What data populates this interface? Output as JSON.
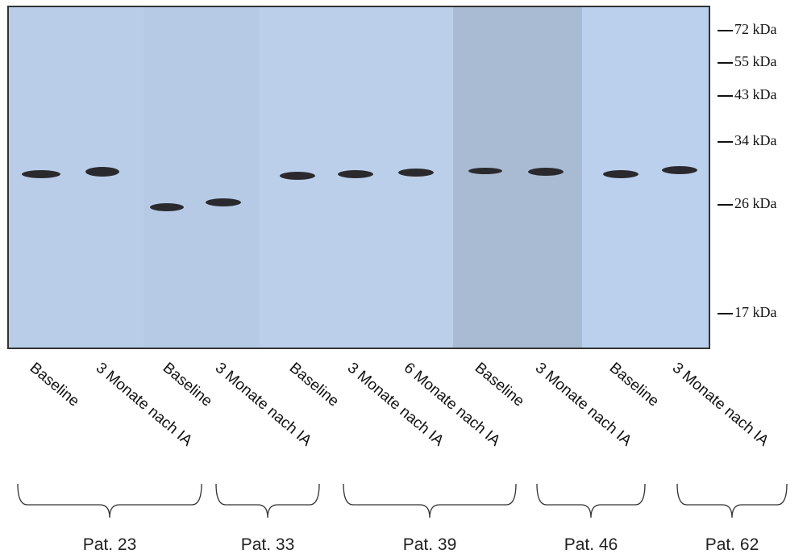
{
  "markers": [
    "72 kDa",
    "55 kDa",
    "43 kDa",
    "34 kDa",
    "26 kDa",
    "17 kDa"
  ],
  "lanes": [
    "Baseline",
    "3 Monate nach IA",
    "Baseline",
    "3 Monate nach IA",
    "Baseline",
    "3 Monate nach IA",
    "6 Monate nach IA",
    "Baseline",
    "3 Monate nach IA",
    "Baseline",
    "3 Monate nach IA"
  ],
  "groups": [
    "Pat. 23",
    "Pat. 33",
    "Pat. 39",
    "Pat. 46",
    "Pat. 62"
  ]
}
